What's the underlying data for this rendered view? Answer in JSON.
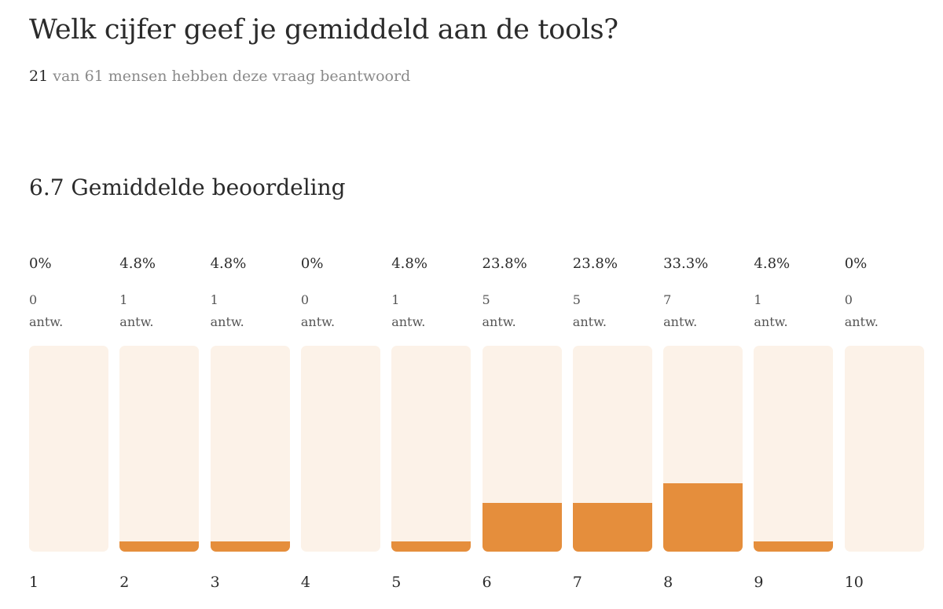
{
  "header": {
    "title": "Welk cijfer geef je gemiddeld aan de tools?",
    "answered": "21",
    "answered_suffix": " van 61 mensen hebben deze vraag beantwoord"
  },
  "average_label": "6.7 Gemiddelde beoordeling",
  "colors": {
    "fill": "#e58e3c",
    "track": "#fcf2e8"
  },
  "chart_data": {
    "type": "bar",
    "title": "6.7 Gemiddelde beoordeling",
    "categories": [
      "1",
      "2",
      "3",
      "4",
      "5",
      "6",
      "7",
      "8",
      "9",
      "10"
    ],
    "percent_labels": [
      "0%",
      "4.8%",
      "4.8%",
      "0%",
      "4.8%",
      "23.8%",
      "23.8%",
      "33.3%",
      "4.8%",
      "0%"
    ],
    "values": [
      0,
      4.8,
      4.8,
      0,
      4.8,
      23.8,
      23.8,
      33.3,
      4.8,
      0
    ],
    "counts": [
      "0",
      "1",
      "1",
      "0",
      "1",
      "5",
      "5",
      "7",
      "1",
      "0"
    ],
    "count_unit": "antw.",
    "ylim": [
      0,
      100
    ]
  }
}
